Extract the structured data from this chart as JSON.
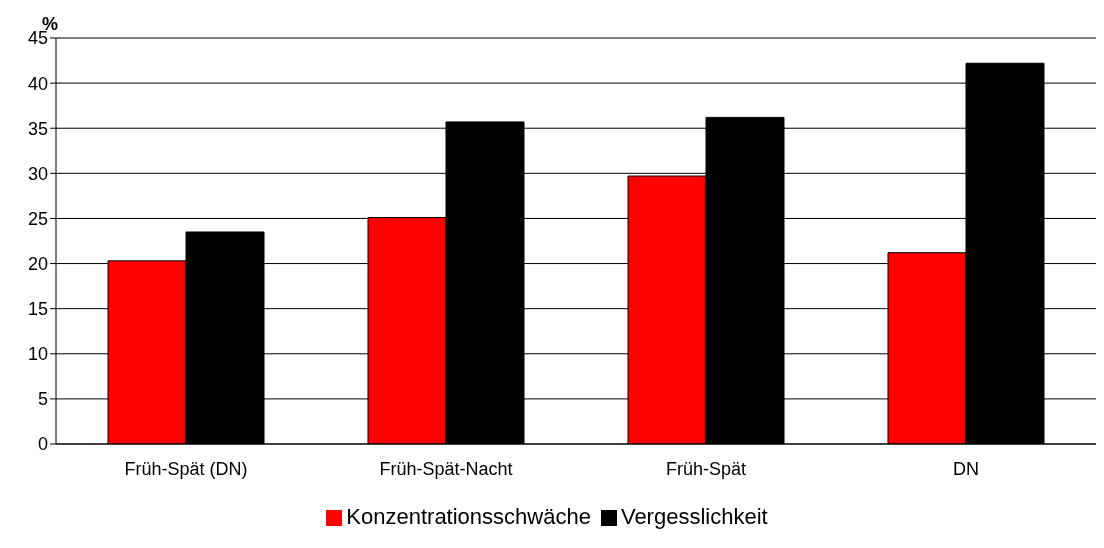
{
  "chart_data": {
    "type": "bar",
    "ylabel": "%",
    "categories": [
      "Früh-Spät (DN)",
      "Früh-Spät-Nacht",
      "Früh-Spät",
      "DN"
    ],
    "series": [
      {
        "name": "Konzentrationsschwäche",
        "color": "#ff0000",
        "values": [
          20.3,
          25.1,
          29.7,
          21.2
        ]
      },
      {
        "name": "Vergesslichkeit",
        "color": "#000000",
        "values": [
          23.5,
          35.7,
          36.2,
          42.2
        ]
      }
    ],
    "ylim": [
      0,
      45
    ],
    "yticks": [
      0,
      5,
      10,
      15,
      20,
      25,
      30,
      35,
      40,
      45
    ],
    "grid": "y",
    "legend": "bottom"
  }
}
